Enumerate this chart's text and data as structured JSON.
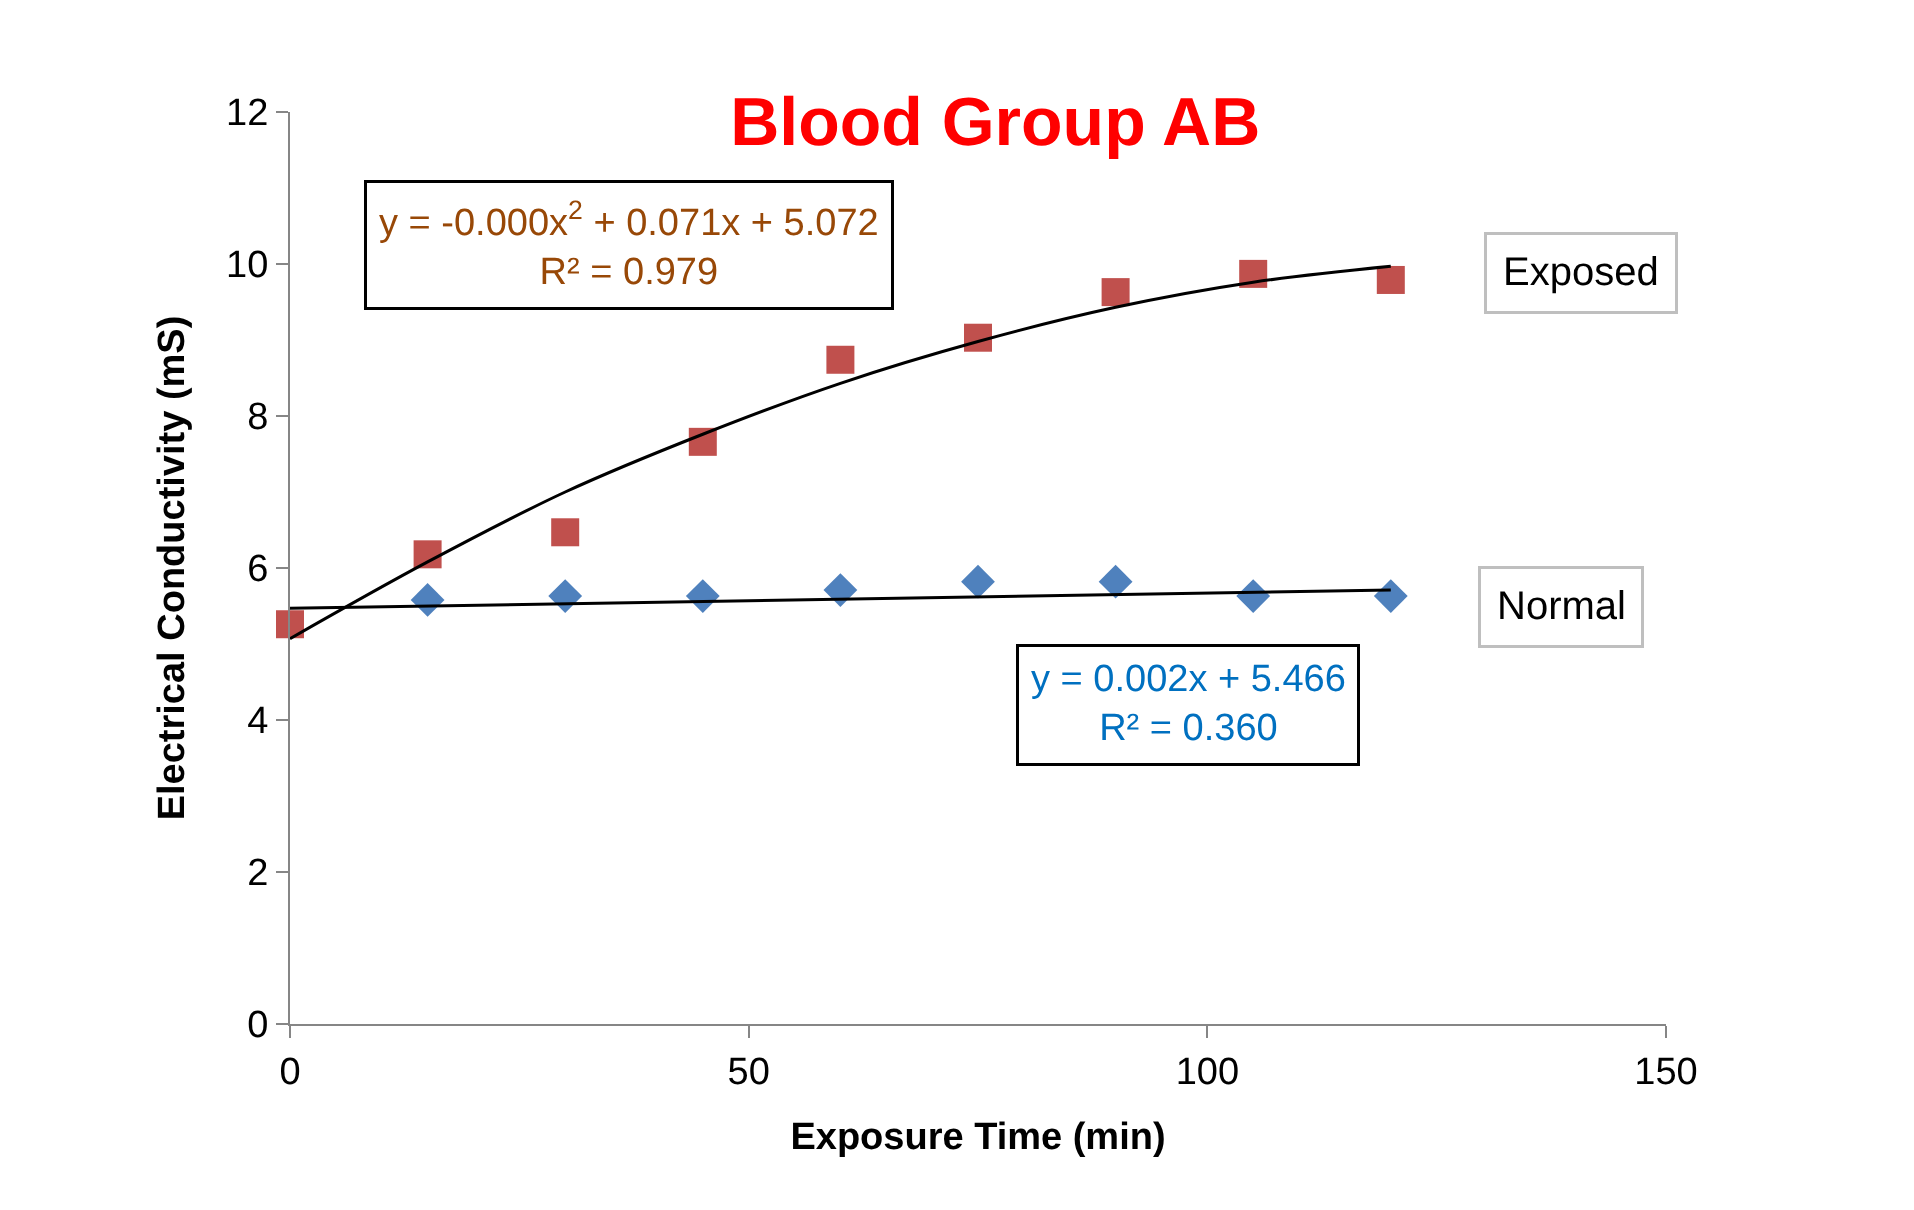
{
  "chart_data": {
    "type": "scatter",
    "title": "Blood Group AB",
    "xlabel": "Exposure Time (min)",
    "ylabel": "Electrical Conductivity (mS)",
    "x": [
      0,
      15,
      30,
      45,
      60,
      75,
      90,
      105,
      120
    ],
    "series": [
      {
        "name": "Exposed",
        "color": "#c0504d",
        "marker": "square",
        "values": [
          5.26,
          6.18,
          6.47,
          7.66,
          8.74,
          9.03,
          9.63,
          9.87,
          9.79
        ]
      },
      {
        "name": "Normal",
        "color": "#4f81bd",
        "marker": "diamond",
        "values": [
          null,
          5.58,
          5.63,
          5.63,
          5.71,
          5.82,
          5.82,
          5.63,
          5.63
        ]
      },
      {
        "type": "line",
        "color": "#000000",
        "marker": "none",
        "x": [
          0,
          15,
          30,
          45,
          60,
          75,
          90,
          105,
          120
        ],
        "values": [
          5.07,
          6.08,
          7.0,
          7.76,
          8.43,
          8.98,
          9.43,
          9.76,
          9.97
        ]
      },
      {
        "type": "line",
        "color": "#000000",
        "marker": "none",
        "x": [
          0,
          120
        ],
        "values": [
          5.47,
          5.71
        ]
      }
    ],
    "annotations": [
      "y = -0.000x$^{2}$ + 0.071x + 5.072\nR² = 0.979",
      "y = 0.002x + 5.466\nR² = 0.360"
    ],
    "xlim": [
      0,
      150
    ],
    "xticks": [
      0,
      50,
      100,
      150
    ],
    "ylim": [
      0,
      12
    ],
    "yticks": [
      0,
      2,
      4,
      6,
      8,
      10,
      12
    ]
  }
}
